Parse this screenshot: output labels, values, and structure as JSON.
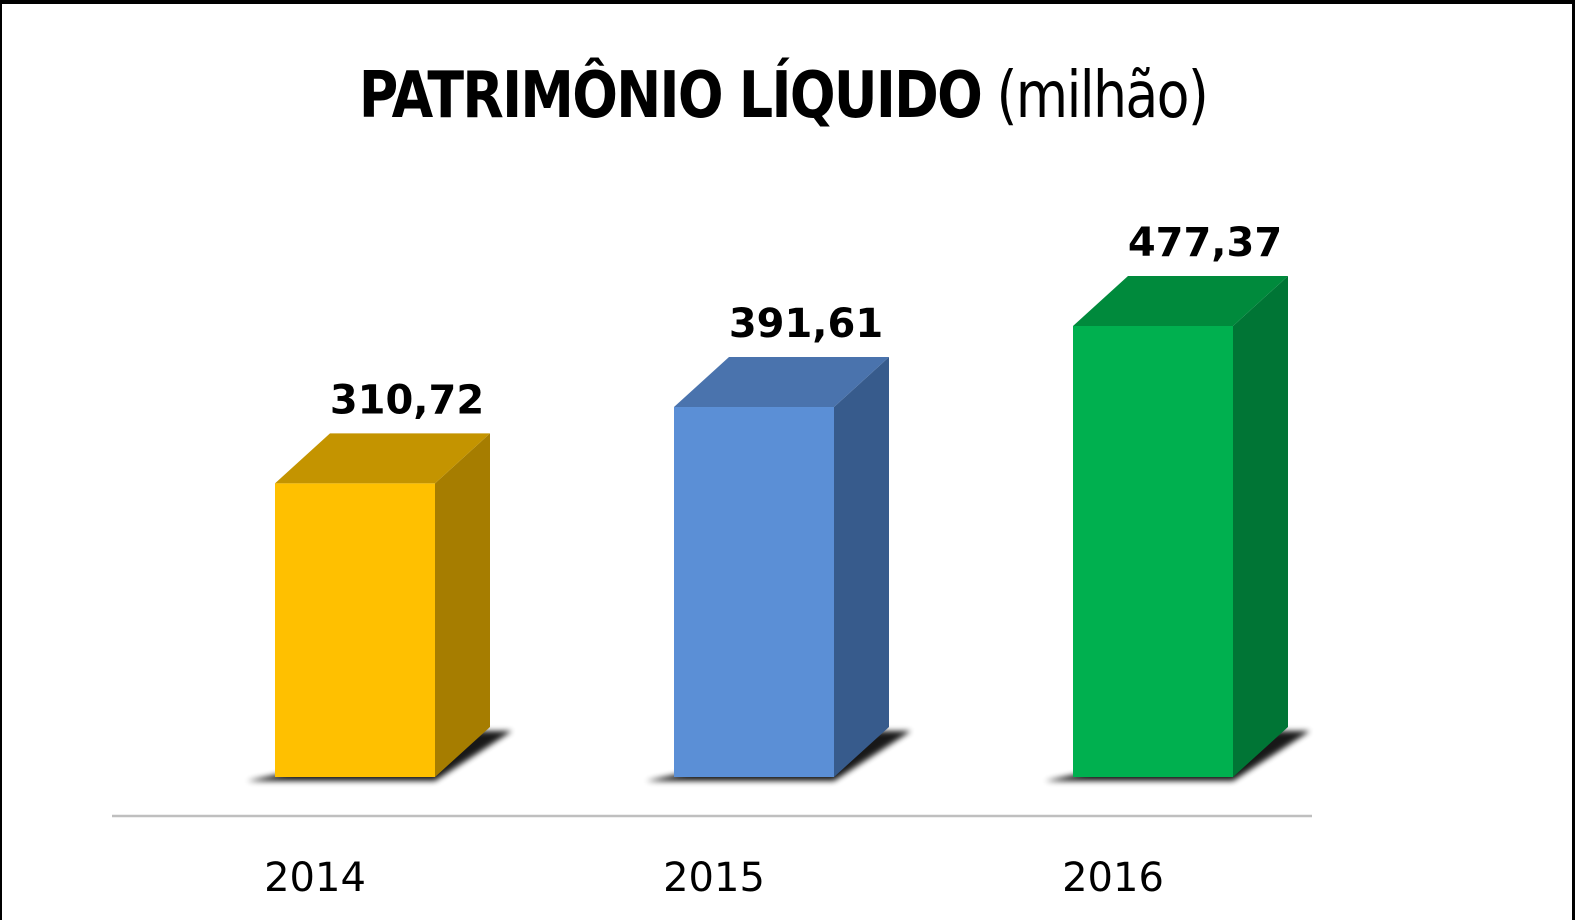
{
  "chart_data": {
    "type": "bar",
    "title_bold": "PATRIMÔNIO LÍQUIDO",
    "title_light": "(milhão)",
    "categories": [
      "2014",
      "2015",
      "2016"
    ],
    "values": [
      310.72,
      391.61,
      477.37
    ],
    "value_labels": [
      "310,72",
      "391,61",
      "477,37"
    ],
    "colors": [
      {
        "front": "#ffc000",
        "top": "#c49400",
        "side": "#a67d00"
      },
      {
        "front": "#5b8fd6",
        "top": "#4a73ad",
        "side": "#375b8c"
      },
      {
        "front": "#00b04f",
        "top": "#008a3c",
        "side": "#007535"
      }
    ],
    "axis_line_color": "#bfbfbf",
    "grid": false,
    "legend": false
  }
}
